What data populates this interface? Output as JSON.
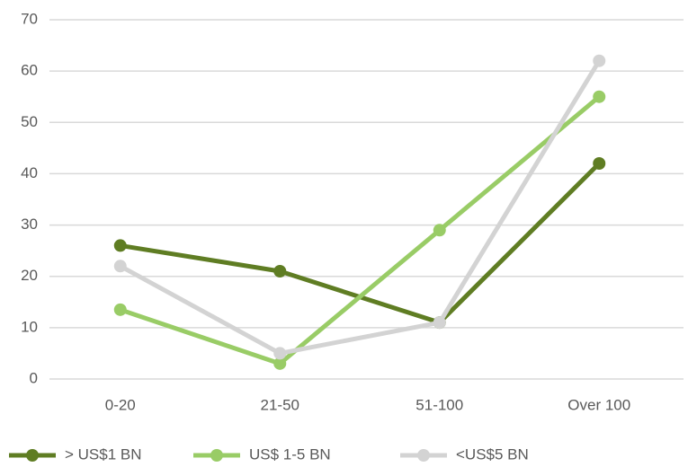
{
  "chart_data": {
    "type": "line",
    "categories": [
      "0-20",
      "21-50",
      "51-100",
      "Over 100"
    ],
    "series": [
      {
        "name": "> US$1 BN",
        "color": "#5f7d23",
        "values": [
          26,
          21,
          11,
          42
        ]
      },
      {
        "name": "US$ 1-5 BN",
        "color": "#99cc66",
        "values": [
          13.5,
          3,
          29,
          55
        ]
      },
      {
        "name": "<US$5 BN",
        "color": "#d3d3d3",
        "values": [
          22,
          5,
          11,
          62
        ]
      }
    ],
    "ylim": [
      0,
      70
    ],
    "yticks": [
      0,
      10,
      20,
      30,
      40,
      50,
      60,
      70
    ],
    "grid": true,
    "legend": "bottom"
  }
}
